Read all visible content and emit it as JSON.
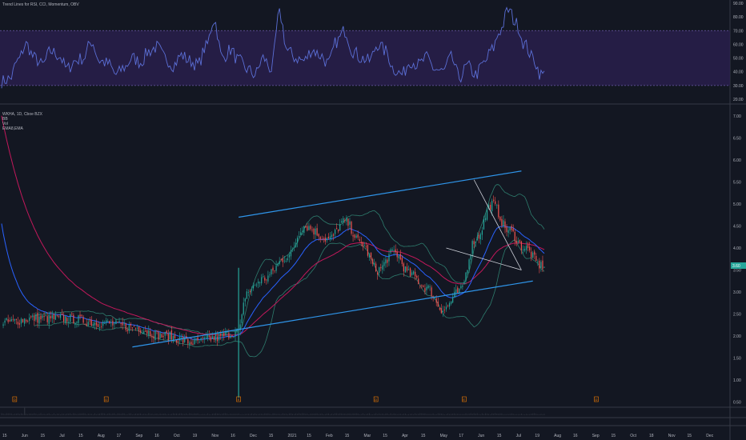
{
  "colors": {
    "background": "#131722",
    "pane_border": "#363a45",
    "rsi_line": "#5b6fd6",
    "rsi_band_fill": "#2a1f4f",
    "rsi_band_line": "#6b5aa8",
    "trend_line": "#2f95ea",
    "candle_up": "#26a69a",
    "candle_down": "#ef5350",
    "bb_line": "#2e7d6e",
    "ema_slow": "#c2185b",
    "ema_fast": "#2962ff",
    "label_text": "#b2b5be",
    "price_tag": "#26a69a"
  },
  "top_pane": {
    "legend": "Trend Lines for RSI, CCI, Momentum, OBV"
  },
  "main_pane": {
    "legend_lines": [
      "WKHA, 1D, Cboe BZX",
      "BB",
      "Vol",
      "EMA8,EMA"
    ]
  },
  "chart_data": [
    {
      "type": "line",
      "name": "RSI pane",
      "yticks": [
        "90.00",
        "80.00",
        "70.00",
        "60.00",
        "50.00",
        "40.00",
        "30.00",
        "20.00"
      ],
      "ylim": [
        20,
        90
      ],
      "band": [
        30,
        70
      ],
      "x_index_range": [
        0,
        332
      ],
      "keypoints_x": [
        0,
        5,
        10,
        15,
        20,
        25,
        30,
        35,
        40,
        45,
        50,
        55,
        60,
        65,
        70,
        75,
        80,
        85,
        90,
        95,
        100,
        105,
        110,
        115,
        120,
        125,
        130,
        135,
        140,
        145,
        150,
        155,
        160,
        165,
        170,
        175,
        180,
        185,
        190,
        195,
        200,
        205,
        210,
        215,
        220,
        225,
        230,
        235,
        240,
        245,
        250,
        255,
        260,
        265,
        270,
        275,
        280,
        285,
        290,
        295,
        300,
        305,
        310,
        315,
        320,
        325,
        330
      ],
      "keypoints_y": [
        33,
        35,
        48,
        60,
        50,
        45,
        55,
        52,
        42,
        48,
        50,
        62,
        48,
        46,
        38,
        43,
        50,
        47,
        55,
        58,
        50,
        45,
        52,
        48,
        45,
        58,
        78,
        50,
        56,
        48,
        42,
        38,
        50,
        42,
        82,
        55,
        50,
        48,
        56,
        52,
        46,
        62,
        70,
        55,
        50,
        48,
        60,
        55,
        42,
        38,
        48,
        45,
        50,
        42,
        40,
        50,
        36,
        44,
        38,
        46,
        56,
        70,
        85,
        75,
        60,
        50,
        38
      ]
    },
    {
      "type": "line",
      "name": "Price pane",
      "yticks": [
        "7.00",
        "6.50",
        "6.00",
        "5.50",
        "5.00",
        "4.50",
        "4.00",
        "3.50",
        "3.00",
        "2.50",
        "2.00",
        "1.50",
        "1.00",
        "0.50"
      ],
      "ylim": [
        0.4,
        7.2
      ],
      "xticks": [
        "15",
        "Jun",
        "15",
        "Jul",
        "15",
        "Aug",
        "17",
        "Sep",
        "16",
        "Oct",
        "19",
        "Nov",
        "16",
        "Dec",
        "15",
        "2021",
        "15",
        "Feb",
        "15",
        "Mar",
        "15",
        "Apr",
        "15",
        "May",
        "17",
        "Jun",
        "15",
        "Jul",
        "19",
        "Aug",
        "16",
        "Sep",
        "15",
        "Oct",
        "18",
        "Nov",
        "15",
        "Dec"
      ],
      "x_index_range": [
        0,
        332
      ],
      "close_keypoints_x": [
        0,
        20,
        40,
        60,
        80,
        100,
        118,
        130,
        145,
        150,
        160,
        175,
        185,
        200,
        210,
        220,
        230,
        240,
        250,
        260,
        270,
        280,
        290,
        300,
        310,
        320,
        330
      ],
      "close_keypoints_y": [
        2.3,
        2.4,
        2.4,
        2.3,
        2.2,
        2.0,
        1.85,
        1.95,
        2.1,
        3.0,
        3.3,
        3.8,
        4.5,
        4.2,
        4.6,
        4.1,
        3.5,
        3.9,
        3.4,
        3.1,
        2.6,
        3.0,
        4.2,
        5.0,
        4.4,
        4.0,
        3.6
      ],
      "price_tag": "3.60",
      "trend_channel_upper": [
        [
          145,
          4.7
        ],
        [
          318,
          5.75
        ]
      ],
      "trend_channel_lower": [
        [
          80,
          1.75
        ],
        [
          325,
          3.25
        ]
      ],
      "wedge_upper": [
        [
          289,
          5.55
        ],
        [
          318,
          3.5
        ]
      ],
      "wedge_lower": [
        [
          272,
          4.0
        ],
        [
          318,
          3.5
        ]
      ]
    }
  ],
  "volume_markers": [
    "D",
    "D",
    "E",
    "D",
    "E",
    "D",
    "E"
  ]
}
